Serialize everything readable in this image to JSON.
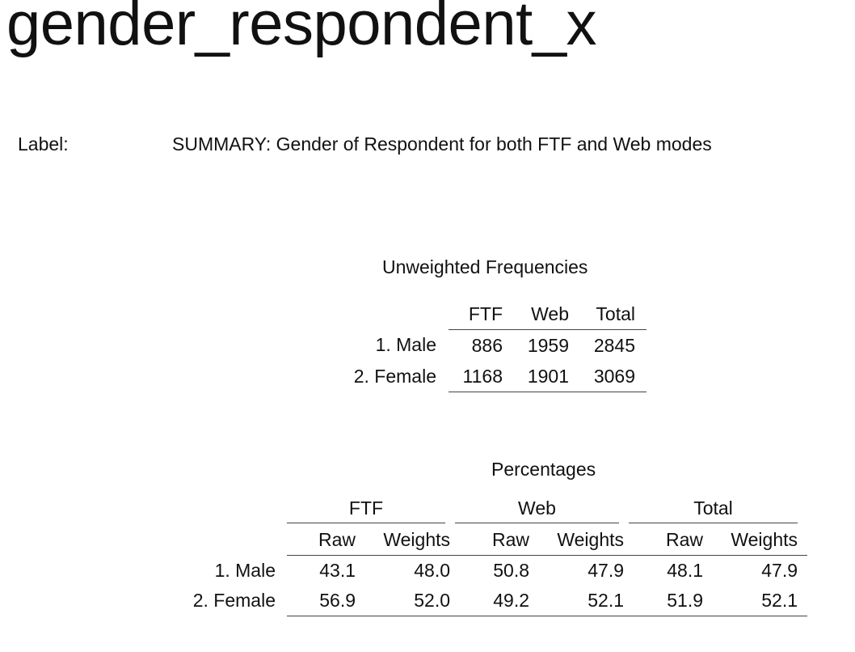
{
  "title": "gender_respondent_x",
  "label": {
    "key": "Label:",
    "value": "SUMMARY: Gender of Respondent for both FTF and Web modes"
  },
  "frequencies": {
    "caption": "Unweighted Frequencies",
    "columns": [
      "FTF",
      "Web",
      "Total"
    ],
    "rows": [
      {
        "label": "1. Male",
        "values": [
          "886",
          "1959",
          "2845"
        ]
      },
      {
        "label": "2. Female",
        "values": [
          "1168",
          "1901",
          "3069"
        ]
      }
    ]
  },
  "percentages": {
    "caption": "Percentages",
    "groups": [
      "FTF",
      "Web",
      "Total"
    ],
    "subcolumns": [
      "Raw",
      "Weights"
    ],
    "rows": [
      {
        "label": "1. Male",
        "values": [
          "43.1",
          "48.0",
          "50.8",
          "47.9",
          "48.1",
          "47.9"
        ]
      },
      {
        "label": "2. Female",
        "values": [
          "56.9",
          "52.0",
          "49.2",
          "52.1",
          "51.9",
          "52.1"
        ]
      }
    ]
  }
}
